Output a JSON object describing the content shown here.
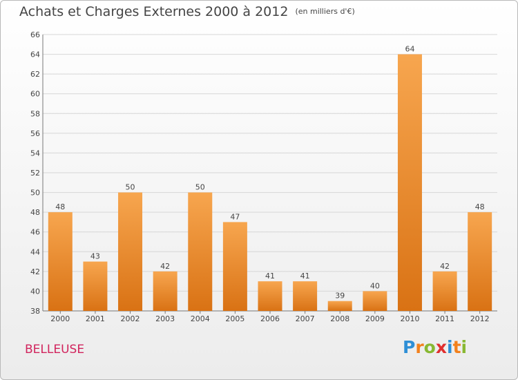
{
  "title": "Achats et Charges Externes 2000 à 2012",
  "subtitle": "(en milliers d'€)",
  "commune": "BELLEUSE",
  "logo": {
    "text": "Proxiti",
    "colors": [
      "#2e8fd6",
      "#f2811d",
      "#88b832",
      "#e02f2f",
      "#2e8fd6",
      "#f2811d",
      "#88b832"
    ]
  },
  "colors": {
    "bar_light": "#f7a64f",
    "bar_dark": "#d97214",
    "grid": "#d6d6d6"
  },
  "chart_data": {
    "type": "bar",
    "title": "Achats et Charges Externes 2000 à 2012",
    "subtitle": "(en milliers d'€)",
    "categories": [
      "2000",
      "2001",
      "2002",
      "2003",
      "2004",
      "2005",
      "2006",
      "2007",
      "2008",
      "2009",
      "2010",
      "2011",
      "2012"
    ],
    "values": [
      48,
      43,
      50,
      42,
      50,
      47,
      41,
      41,
      39,
      40,
      64,
      42,
      48
    ],
    "ylim": [
      38,
      66
    ],
    "yticks": [
      38,
      40,
      42,
      44,
      46,
      48,
      50,
      52,
      54,
      56,
      58,
      60,
      62,
      64,
      66
    ],
    "grid": true
  }
}
